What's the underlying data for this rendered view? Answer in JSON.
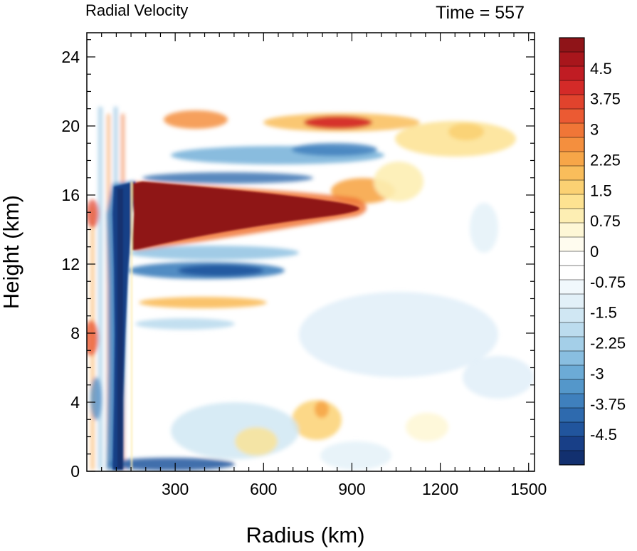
{
  "chart_data": {
    "type": "heatmap",
    "title_left": "Radial Velocity",
    "title_right": "Time = 557",
    "xlabel": "Radius (km)",
    "ylabel": "Height (km)",
    "xlim": [
      0,
      1520
    ],
    "ylim": [
      0,
      25.4
    ],
    "x_ticks": [
      300,
      600,
      900,
      1200,
      1500
    ],
    "x_tick_labels": [
      "300",
      "600",
      "900",
      "1200",
      "1500"
    ],
    "y_ticks": [
      0,
      4,
      8,
      12,
      16,
      20,
      24
    ],
    "y_tick_labels": [
      "0",
      "4",
      "8",
      "12",
      "16",
      "20",
      "24"
    ],
    "colorbar": {
      "min": -5.25,
      "max": 5.25,
      "step": 0.25,
      "tick_values": [
        4.5,
        3.75,
        3,
        2.25,
        1.5,
        0.75,
        0,
        -0.75,
        -1.5,
        -2.25,
        -3,
        -3.75,
        -4.5
      ],
      "tick_labels": [
        "4.5",
        "3.75",
        "3",
        "2.25",
        "1.5",
        "0.75",
        "0",
        "-0.75",
        "-1.5",
        "-2.25",
        "-3",
        "-3.75",
        "-4.5"
      ],
      "colors_high_to_low": [
        "#8f1418",
        "#a8161c",
        "#c01c23",
        "#d42a28",
        "#e1432d",
        "#eb5a33",
        "#f07637",
        "#f48f3e",
        "#f7a648",
        "#f9bd5b",
        "#fbd173",
        "#fde291",
        "#fdeeb3",
        "#fef7d6",
        "#fffcef",
        "#ffffff",
        "#ffffff",
        "#f1f8fc",
        "#e2f0f8",
        "#d0e7f3",
        "#bcdcee",
        "#a4cfe8",
        "#89bee0",
        "#6cabd6",
        "#5497ca",
        "#3f80bd",
        "#2e6aae",
        "#21559d",
        "#183f87",
        "#12306f"
      ]
    },
    "features": [
      {
        "name": "upper-level outflow jet",
        "sign": "positive",
        "x": [
          170,
          1000
        ],
        "y": [
          13,
          16.6
        ],
        "peak": 5.25
      },
      {
        "name": "mid-level inflow band",
        "sign": "negative",
        "x": [
          180,
          720
        ],
        "y": [
          10.8,
          12.5
        ],
        "peak": -4.5
      },
      {
        "name": "inner eyewall inflow column",
        "sign": "negative",
        "x": [
          100,
          170
        ],
        "y": [
          0,
          16.5
        ],
        "peak": -5.0
      },
      {
        "name": "boundary-layer inflow",
        "sign": "negative",
        "x": [
          150,
          500
        ],
        "y": [
          0,
          0.6
        ],
        "peak": -4.5
      },
      {
        "name": "upper outflow band 20km",
        "sign": "positive",
        "x": [
          600,
          1050
        ],
        "y": [
          19.5,
          21
        ],
        "peak": 4.0
      },
      {
        "name": "upper inflow band 18km",
        "sign": "negative",
        "x": [
          250,
          1000
        ],
        "y": [
          16.5,
          18.8
        ],
        "peak": -3.5
      },
      {
        "name": "mid-level outflow band 9.6km",
        "sign": "positive",
        "x": [
          200,
          720
        ],
        "y": [
          9.2,
          10.2
        ],
        "peak": 2.0
      },
      {
        "name": "far-field outflow 19.5km",
        "sign": "positive",
        "x": [
          1050,
          1450
        ],
        "y": [
          18,
          21
        ],
        "peak": 1.5
      }
    ]
  }
}
